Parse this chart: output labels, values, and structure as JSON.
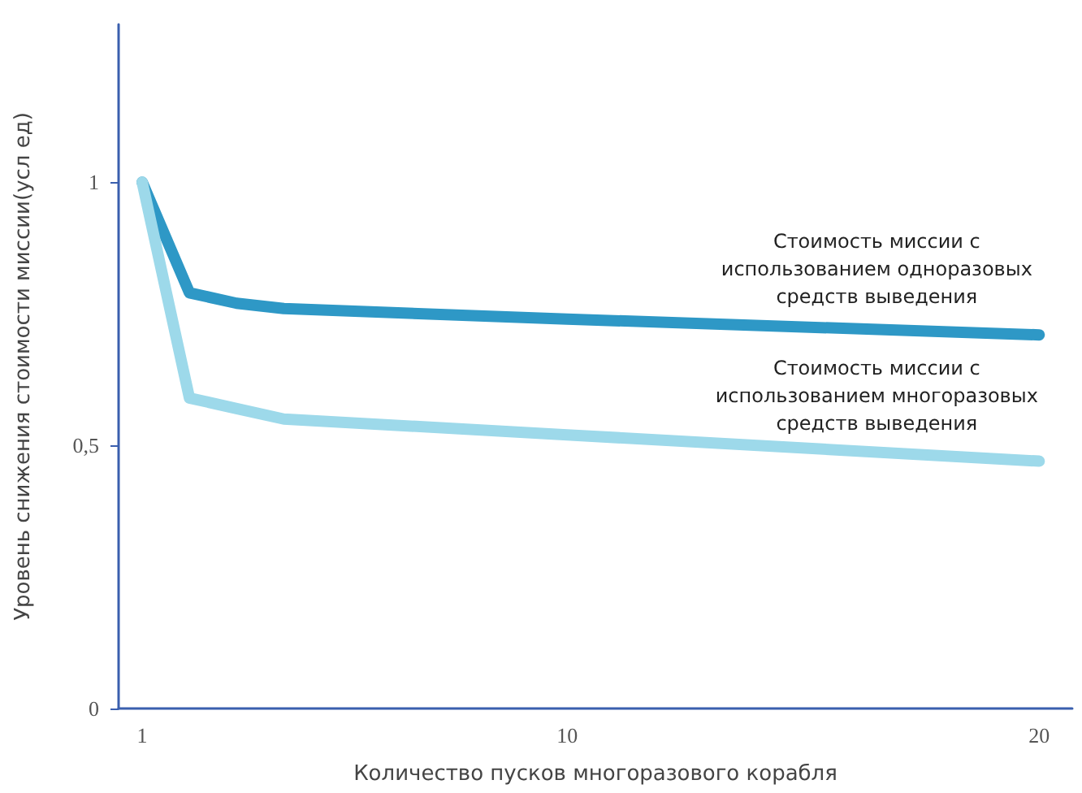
{
  "chart_data": {
    "type": "line",
    "xlabel": "Количество пусков многоразового корабля",
    "ylabel": "Уровень снижения стоимости миссии(усл ед)",
    "x": [
      1,
      2,
      3,
      4,
      10,
      20
    ],
    "series": [
      {
        "name": "Стоимость миссии с\nиспользованием одноразовых\nсредств выведения",
        "color": "#2e98c6",
        "values": [
          1,
          0.79,
          0.77,
          0.76,
          0.74,
          0.71
        ]
      },
      {
        "name": "Стоимость миссии с\nиспользованием многоразовых\nсредств выведения",
        "color": "#9dd9ea",
        "values": [
          1,
          0.59,
          0.57,
          0.55,
          0.52,
          0.47
        ]
      }
    ],
    "xlim": [
      0.5,
      20.7
    ],
    "xticks": [
      1,
      10,
      20
    ],
    "ylim": [
      0,
      1.3
    ],
    "yticks": [
      0,
      {
        "value": 0.5,
        "label": "0,5"
      },
      1
    ],
    "grid": false,
    "legend": false,
    "marker": "none",
    "line_style": "solid"
  }
}
